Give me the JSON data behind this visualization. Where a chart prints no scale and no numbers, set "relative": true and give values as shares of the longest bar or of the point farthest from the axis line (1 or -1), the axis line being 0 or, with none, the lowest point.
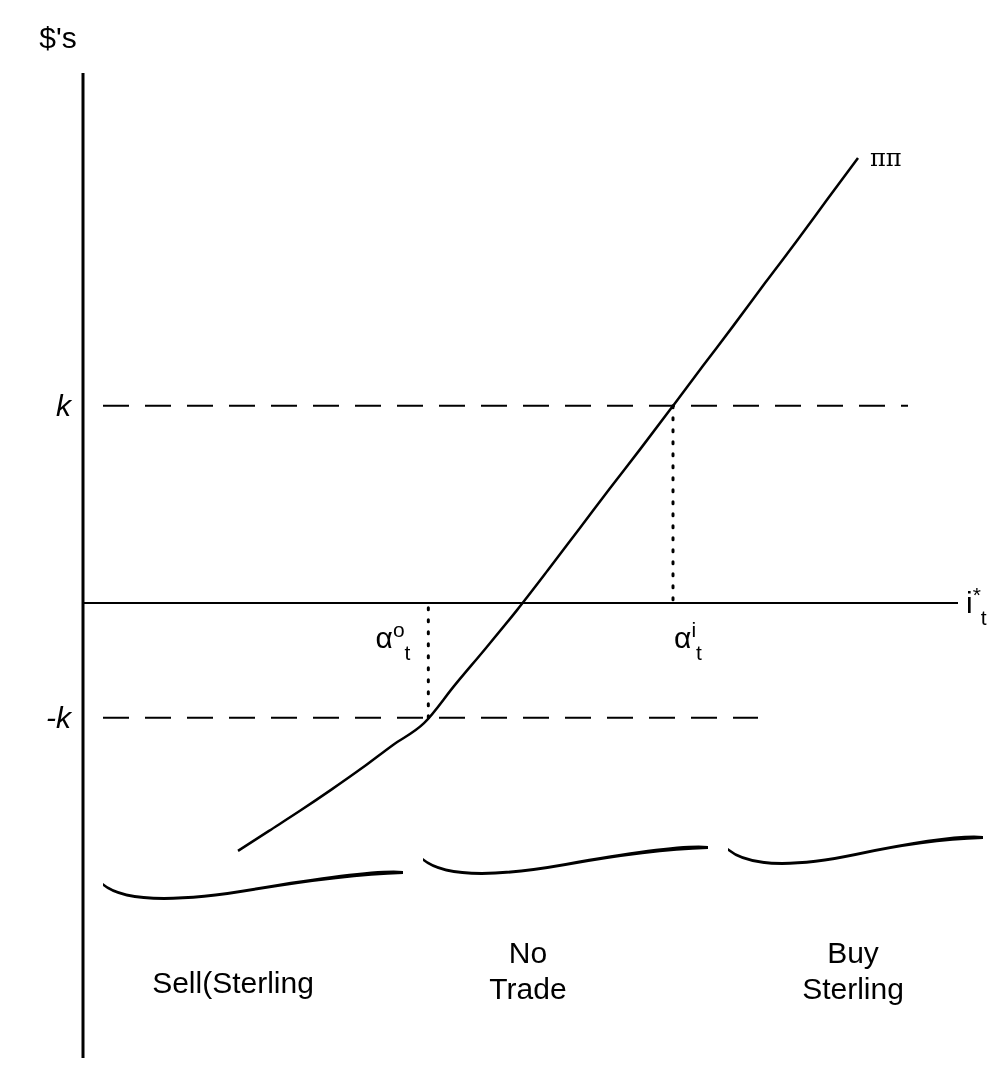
{
  "chart_data": {
    "type": "line",
    "relative": true,
    "xlabel": "i$^{*}$$_{t}$",
    "marker": "none",
    "line_style": "solid",
    "categories": [
      null,
      null,
      null,
      null,
      null,
      null,
      null,
      null,
      null,
      null,
      null,
      null,
      null,
      null,
      null,
      null,
      null,
      null,
      null,
      null,
      null
    ],
    "series": [
      {
        "name": "ππ",
        "color": "#000000",
        "values": [
          -0.557,
          -0.512,
          -0.467,
          -0.42,
          -0.371,
          -0.319,
          -0.27,
          -0.184,
          -0.101,
          -0.016,
          0.074,
          0.166,
          0.258,
          0.348,
          0.44,
          0.533,
          0.625,
          0.719,
          0.811,
          0.906,
          1
        ]
      }
    ],
    "ref_lines": [
      {
        "axis": "y",
        "value": 0.443,
        "label": "k",
        "line_style": "dashed",
        "color": "#000000"
      },
      {
        "axis": "y",
        "value": -0.258,
        "label": "-k",
        "line_style": "dashed",
        "color": "#000000"
      }
    ],
    "annotations": [
      "α$^{o}$$_{t}$",
      "α$^{i}$$_{t}$",
      "Sell(Sterling",
      "No Trade",
      "Buy Sterling",
      "$'s"
    ]
  }
}
